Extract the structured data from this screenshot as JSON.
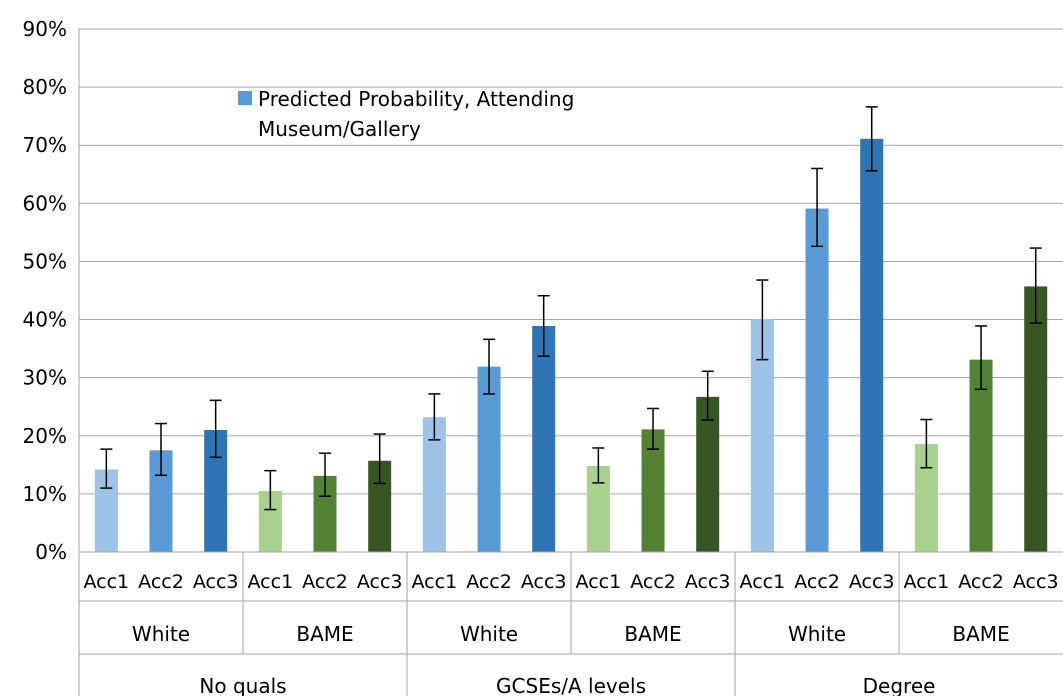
{
  "chart_data": {
    "type": "bar",
    "title": "",
    "xlabel": "",
    "ylabel": "",
    "ylim": [
      0,
      0.9
    ],
    "y_ticks": [
      0,
      0.1,
      0.2,
      0.3,
      0.4,
      0.5,
      0.6,
      0.7,
      0.8,
      0.9
    ],
    "y_tick_labels": [
      "0%",
      "10%",
      "20%",
      "30%",
      "40%",
      "50%",
      "60%",
      "70%",
      "80%",
      "90%"
    ],
    "grid": true,
    "legend_position": "top-left",
    "legend": {
      "label_line1": "Predicted Probability, Attending",
      "label_line2": "Museum/Gallery",
      "color": "#5b9bd5"
    },
    "qualifications": [
      {
        "label": "No quals",
        "groups": [
          {
            "label": "White",
            "bars": [
              {
                "label": "Acc1",
                "value": 0.142,
                "low": 0.11,
                "high": 0.177,
                "color": "#9dc3e6"
              },
              {
                "label": "Acc2",
                "value": 0.175,
                "low": 0.132,
                "high": 0.221,
                "color": "#5b9bd5"
              },
              {
                "label": "Acc3",
                "value": 0.21,
                "low": 0.163,
                "high": 0.261,
                "color": "#2e75b6"
              }
            ]
          },
          {
            "label": "BAME",
            "bars": [
              {
                "label": "Acc1",
                "value": 0.105,
                "low": 0.073,
                "high": 0.14,
                "color": "#a9d18e"
              },
              {
                "label": "Acc2",
                "value": 0.131,
                "low": 0.096,
                "high": 0.17,
                "color": "#548235"
              },
              {
                "label": "Acc3",
                "value": 0.157,
                "low": 0.118,
                "high": 0.203,
                "color": "#375623"
              }
            ]
          }
        ]
      },
      {
        "label": "GCSEs/A levels",
        "groups": [
          {
            "label": "White",
            "bars": [
              {
                "label": "Acc1",
                "value": 0.232,
                "low": 0.193,
                "high": 0.272,
                "color": "#9dc3e6"
              },
              {
                "label": "Acc2",
                "value": 0.319,
                "low": 0.272,
                "high": 0.366,
                "color": "#5b9bd5"
              },
              {
                "label": "Acc3",
                "value": 0.389,
                "low": 0.337,
                "high": 0.441,
                "color": "#2e75b6"
              }
            ]
          },
          {
            "label": "BAME",
            "bars": [
              {
                "label": "Acc1",
                "value": 0.148,
                "low": 0.119,
                "high": 0.179,
                "color": "#a9d18e"
              },
              {
                "label": "Acc2",
                "value": 0.211,
                "low": 0.177,
                "high": 0.247,
                "color": "#548235"
              },
              {
                "label": "Acc3",
                "value": 0.267,
                "low": 0.227,
                "high": 0.311,
                "color": "#375623"
              }
            ]
          }
        ]
      },
      {
        "label": "Degree",
        "groups": [
          {
            "label": "White",
            "bars": [
              {
                "label": "Acc1",
                "value": 0.401,
                "low": 0.331,
                "high": 0.468,
                "color": "#9dc3e6"
              },
              {
                "label": "Acc2",
                "value": 0.591,
                "low": 0.526,
                "high": 0.66,
                "color": "#5b9bd5"
              },
              {
                "label": "Acc3",
                "value": 0.711,
                "low": 0.656,
                "high": 0.766,
                "color": "#2e75b6"
              }
            ]
          },
          {
            "label": "BAME",
            "bars": [
              {
                "label": "Acc1",
                "value": 0.186,
                "low": 0.145,
                "high": 0.228,
                "color": "#a9d18e"
              },
              {
                "label": "Acc2",
                "value": 0.331,
                "low": 0.28,
                "high": 0.389,
                "color": "#548235"
              },
              {
                "label": "Acc3",
                "value": 0.457,
                "low": 0.394,
                "high": 0.523,
                "color": "#375623"
              }
            ]
          }
        ]
      }
    ]
  }
}
